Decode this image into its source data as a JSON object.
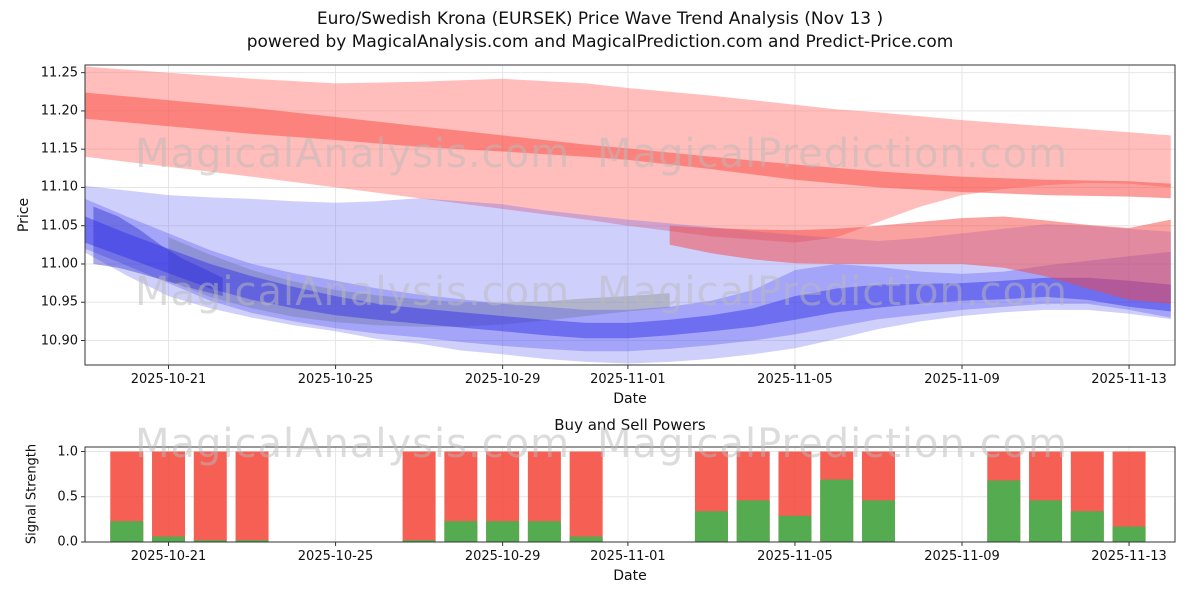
{
  "title": {
    "line1": "Euro/Swedish Krona (EURSEK) Price Wave Trend Analysis (Nov 13 )",
    "line2": "powered by MagicalAnalysis.com and MagicalPrediction.com and Predict-Price.com"
  },
  "watermarks": {
    "left": "MagicalAnalysis.com",
    "right": "MagicalPrediction.com"
  },
  "chart_data": [
    {
      "type": "area",
      "title": "Euro/Swedish Krona (EURSEK) Price Wave Trend Analysis (Nov 13 )",
      "xlabel": "Date",
      "ylabel": "Price",
      "grid": true,
      "legend": "none",
      "ylim": [
        10.868,
        11.26
      ],
      "y_ticks": [
        10.9,
        10.95,
        11.0,
        11.05,
        11.1,
        11.15,
        11.2,
        11.25
      ],
      "x_domain_days": [
        0,
        26.1
      ],
      "day0_date": "2025-10-19",
      "x_tick_days": [
        2,
        6,
        10,
        13,
        17,
        21,
        25
      ],
      "x_tick_labels": [
        "2025-10-21",
        "2025-10-25",
        "2025-10-29",
        "2025-11-01",
        "2025-11-05",
        "2025-11-09",
        "2025-11-13"
      ],
      "bands": [
        {
          "name": "red-outer-band",
          "color": "rgba(255,110,104,0.45)",
          "points": [
            [
              0,
              11.14,
              11.258
            ],
            [
              2,
              11.127,
              11.25
            ],
            [
              4,
              11.114,
              11.242
            ],
            [
              6,
              11.1,
              11.236
            ],
            [
              8,
              11.086,
              11.238
            ],
            [
              10,
              11.072,
              11.242
            ],
            [
              12,
              11.058,
              11.236
            ],
            [
              13,
              11.05,
              11.23
            ],
            [
              15,
              11.036,
              11.22
            ],
            [
              17,
              11.028,
              11.208
            ],
            [
              18,
              11.035,
              11.202
            ],
            [
              19,
              11.055,
              11.198
            ],
            [
              20,
              11.075,
              11.193
            ],
            [
              21,
              11.09,
              11.188
            ],
            [
              22,
              11.098,
              11.184
            ],
            [
              23,
              11.103,
              11.18
            ],
            [
              24,
              11.106,
              11.176
            ],
            [
              25,
              11.105,
              11.172
            ],
            [
              26,
              11.1,
              11.168
            ]
          ]
        },
        {
          "name": "red-inner-band",
          "color": "rgba(250,80,75,0.55)",
          "points": [
            [
              0,
              11.19,
              11.224
            ],
            [
              2,
              11.18,
              11.214
            ],
            [
              4,
              11.17,
              11.204
            ],
            [
              6,
              11.162,
              11.192
            ],
            [
              8,
              11.153,
              11.18
            ],
            [
              10,
              11.147,
              11.168
            ],
            [
              12,
              11.14,
              11.156
            ],
            [
              13,
              11.136,
              11.151
            ],
            [
              15,
              11.124,
              11.14
            ],
            [
              17,
              11.11,
              11.13
            ],
            [
              19,
              11.1,
              11.121
            ],
            [
              21,
              11.094,
              11.114
            ],
            [
              23,
              11.09,
              11.11
            ],
            [
              25,
              11.088,
              11.108
            ],
            [
              26,
              11.086,
              11.105
            ]
          ]
        },
        {
          "name": "green-band",
          "color": "rgba(170,180,115,0.5)",
          "points": [
            [
              2,
              10.978,
              11.035
            ],
            [
              3,
              10.957,
              11.012
            ],
            [
              4,
              10.942,
              10.992
            ],
            [
              5,
              10.931,
              10.977
            ],
            [
              6,
              10.924,
              10.966
            ],
            [
              7,
              10.92,
              10.959
            ],
            [
              8,
              10.918,
              10.954
            ],
            [
              9,
              10.918,
              10.95
            ],
            [
              10,
              10.921,
              10.949
            ],
            [
              11,
              10.926,
              10.951
            ],
            [
              12,
              10.932,
              10.955
            ],
            [
              13,
              10.938,
              10.958
            ],
            [
              14,
              10.943,
              10.962
            ]
          ]
        },
        {
          "name": "blue-outer-band",
          "color": "rgba(95,95,245,0.30)",
          "points": [
            [
              0,
              11.015,
              11.102
            ],
            [
              1,
              10.985,
              11.096
            ],
            [
              2,
              10.958,
              11.09
            ],
            [
              3,
              10.942,
              11.087
            ],
            [
              4,
              10.93,
              11.085
            ],
            [
              5,
              10.92,
              11.082
            ],
            [
              6,
              10.912,
              11.08
            ],
            [
              7,
              10.902,
              11.082
            ],
            [
              8,
              10.896,
              11.086
            ],
            [
              9,
              10.887,
              11.082
            ],
            [
              10,
              10.882,
              11.078
            ],
            [
              11,
              10.876,
              11.07
            ],
            [
              12,
              10.872,
              11.064
            ],
            [
              13,
              10.87,
              11.058
            ],
            [
              14,
              10.872,
              11.053
            ],
            [
              15,
              10.876,
              11.048
            ],
            [
              16,
              10.882,
              11.043
            ],
            [
              17,
              10.89,
              11.038
            ],
            [
              18,
              10.902,
              11.034
            ],
            [
              19,
              10.915,
              11.03
            ],
            [
              20,
              10.925,
              11.034
            ],
            [
              21,
              10.932,
              11.04
            ],
            [
              22,
              10.937,
              11.046
            ],
            [
              23,
              10.94,
              11.052
            ],
            [
              24,
              10.94,
              11.05
            ],
            [
              25,
              10.935,
              11.046
            ],
            [
              26,
              10.928,
              11.042
            ]
          ]
        },
        {
          "name": "blue-mid-band",
          "color": "rgba(75,75,240,0.32)",
          "points": [
            [
              0,
              11.02,
              11.085
            ],
            [
              1,
              10.998,
              11.062
            ],
            [
              2,
              10.975,
              11.04
            ],
            [
              3,
              10.952,
              11.018
            ],
            [
              4,
              10.936,
              11.0
            ],
            [
              5,
              10.925,
              10.988
            ],
            [
              6,
              10.916,
              10.978
            ],
            [
              7,
              10.909,
              10.968
            ],
            [
              8,
              10.904,
              10.96
            ],
            [
              9,
              10.898,
              10.954
            ],
            [
              10,
              10.893,
              10.948
            ],
            [
              11,
              10.889,
              10.944
            ],
            [
              12,
              10.886,
              10.94
            ],
            [
              13,
              10.886,
              10.94
            ],
            [
              14,
              10.889,
              10.944
            ],
            [
              15,
              10.894,
              10.952
            ],
            [
              16,
              10.9,
              10.966
            ],
            [
              17,
              10.908,
              10.992
            ],
            [
              18,
              10.918,
              11.0
            ],
            [
              19,
              10.928,
              10.996
            ],
            [
              20,
              10.934,
              10.99
            ],
            [
              21,
              10.94,
              10.987
            ],
            [
              22,
              10.944,
              10.99
            ],
            [
              23,
              10.948,
              10.998
            ],
            [
              24,
              10.948,
              11.004
            ],
            [
              25,
              10.94,
              11.01
            ],
            [
              26,
              10.93,
              11.016
            ]
          ]
        },
        {
          "name": "blue-left-blob-band",
          "color": "rgba(40,40,205,0.40)",
          "points": [
            [
              0.2,
              11.0,
              11.075
            ],
            [
              0.8,
              10.995,
              11.062
            ],
            [
              1.3,
              10.988,
              11.045
            ],
            [
              1.8,
              10.98,
              11.025
            ],
            [
              2.3,
              10.972,
              11.008
            ],
            [
              2.8,
              10.965,
              10.995
            ],
            [
              3.3,
              10.958,
              10.982
            ]
          ]
        },
        {
          "name": "blue-dark-band",
          "color": "rgba(45,45,230,0.45)",
          "points": [
            [
              0,
              11.028,
              11.062
            ],
            [
              1,
              11.008,
              11.04
            ],
            [
              2,
              10.988,
              11.02
            ],
            [
              3,
              10.968,
              11.0
            ],
            [
              4,
              10.953,
              10.984
            ],
            [
              5,
              10.942,
              10.97
            ],
            [
              6,
              10.933,
              10.958
            ],
            [
              7,
              10.927,
              10.948
            ],
            [
              8,
              10.922,
              10.942
            ],
            [
              9,
              10.917,
              10.937
            ],
            [
              10,
              10.912,
              10.932
            ],
            [
              11,
              10.907,
              10.927
            ],
            [
              12,
              10.903,
              10.923
            ],
            [
              13,
              10.903,
              10.923
            ],
            [
              14,
              10.907,
              10.927
            ],
            [
              15,
              10.912,
              10.933
            ],
            [
              16,
              10.918,
              10.942
            ],
            [
              17,
              10.927,
              10.958
            ],
            [
              18,
              10.937,
              10.968
            ],
            [
              19,
              10.943,
              10.973
            ],
            [
              20,
              10.948,
              10.974
            ],
            [
              21,
              10.952,
              10.975
            ],
            [
              22,
              10.954,
              10.978
            ],
            [
              23,
              10.957,
              10.982
            ],
            [
              24,
              10.953,
              10.982
            ],
            [
              25,
              10.944,
              10.978
            ],
            [
              26,
              10.938,
              10.973
            ]
          ]
        },
        {
          "name": "red-lower-band",
          "color": "rgba(245,70,65,0.50)",
          "points": [
            [
              14,
              11.025,
              11.05
            ],
            [
              15,
              11.014,
              11.047
            ],
            [
              16,
              11.006,
              11.045
            ],
            [
              17,
              11.001,
              11.044
            ],
            [
              18,
              11.0,
              11.046
            ],
            [
              19,
              11.0,
              11.05
            ],
            [
              20,
              11.0,
              11.055
            ],
            [
              21,
              11.0,
              11.06
            ],
            [
              22,
              10.995,
              11.062
            ],
            [
              23,
              10.984,
              11.057
            ],
            [
              24,
              10.968,
              11.051
            ],
            [
              25,
              10.953,
              11.047
            ],
            [
              26,
              10.948,
              11.058
            ]
          ]
        }
      ]
    },
    {
      "type": "bar",
      "title": "Buy and Sell Powers",
      "xlabel": "Date",
      "ylabel": "Signal Strength",
      "grid": true,
      "ylim": [
        0,
        1.05
      ],
      "y_ticks": [
        0.0,
        0.5,
        1.0
      ],
      "x_domain_days": [
        0,
        26.1
      ],
      "day0_date": "2025-10-19",
      "x_tick_days": [
        2,
        6,
        10,
        13,
        17,
        21,
        25
      ],
      "x_tick_labels": [
        "2025-10-21",
        "2025-10-25",
        "2025-10-29",
        "2025-11-01",
        "2025-11-05",
        "2025-11-09",
        "2025-11-13"
      ],
      "bar_days": [
        1,
        2,
        3,
        4,
        8,
        9,
        10,
        11,
        12,
        15,
        16,
        17,
        18,
        19,
        22,
        23,
        24,
        25
      ],
      "bar_dates": [
        "2025-10-20",
        "2025-10-21",
        "2025-10-22",
        "2025-10-23",
        "2025-10-27",
        "2025-10-28",
        "2025-10-29",
        "2025-10-30",
        "2025-10-31",
        "2025-11-03",
        "2025-11-04",
        "2025-11-05",
        "2025-11-06",
        "2025-11-07",
        "2025-11-10",
        "2025-11-11",
        "2025-11-12",
        "2025-11-13"
      ],
      "series": [
        {
          "name": "Sell Power",
          "color": "rgba(244,67,54,0.85)",
          "values": [
            1,
            1,
            1,
            1,
            1,
            1,
            1,
            1,
            1,
            1,
            1,
            1,
            1,
            1,
            1,
            1,
            1,
            1
          ]
        },
        {
          "name": "Buy Power",
          "color": "rgba(76,175,80,0.95)",
          "values": [
            0.23,
            0.06,
            0.02,
            0.02,
            0.02,
            0.23,
            0.23,
            0.23,
            0.06,
            0.34,
            0.46,
            0.29,
            0.69,
            0.46,
            0.68,
            0.46,
            0.34,
            0.17
          ]
        }
      ]
    }
  ]
}
